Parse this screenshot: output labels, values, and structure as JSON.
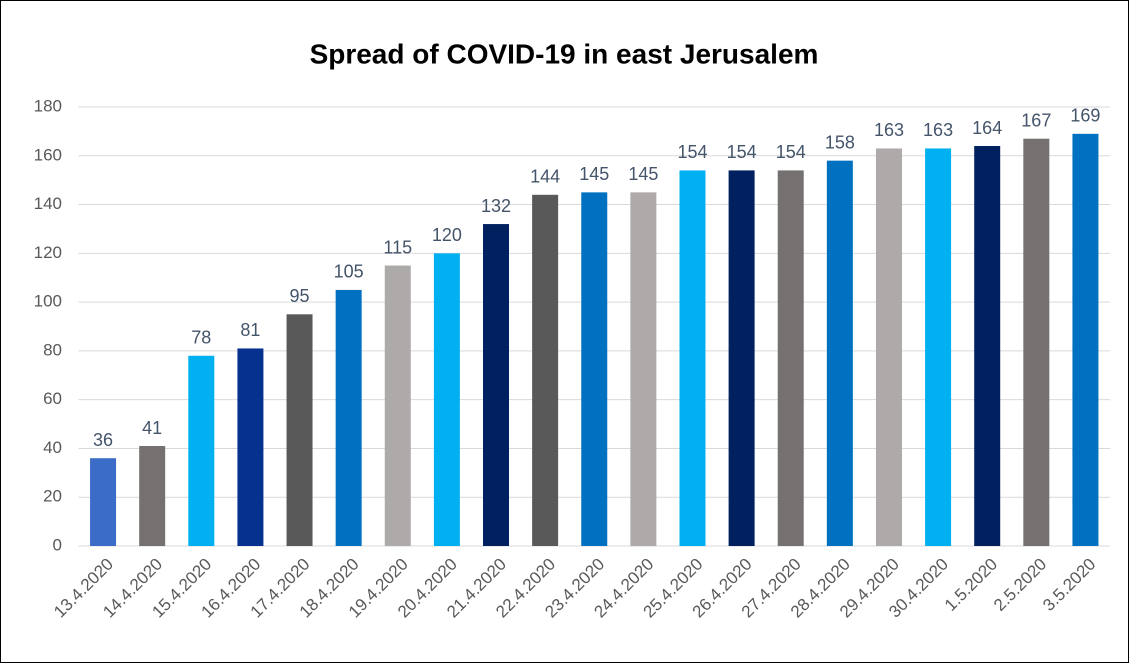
{
  "chart_data": {
    "type": "bar",
    "title": "Spread of COVID-19 in east Jerusalem",
    "categories": [
      "13.4.2020",
      "14.4.2020",
      "15.4.2020",
      "16.4.2020",
      "17.4.2020",
      "18.4.2020",
      "19.4.2020",
      "20.4.2020",
      "21.4.2020",
      "22.4.2020",
      "23.4.2020",
      "24.4.2020",
      "25.4.2020",
      "26.4.2020",
      "27.4.2020",
      "28.4.2020",
      "29.4.2020",
      "30.4.2020",
      "1.5.2020",
      "2.5.2020",
      "3.5.2020"
    ],
    "values": [
      36,
      41,
      78,
      81,
      95,
      105,
      115,
      120,
      132,
      144,
      145,
      145,
      154,
      154,
      154,
      158,
      163,
      163,
      164,
      167,
      169
    ],
    "colors": [
      "#3b6cc7",
      "#767171",
      "#00b0f0",
      "#06318e",
      "#595959",
      "#0070c0",
      "#aeaaaa",
      "#00b0f0",
      "#002060",
      "#595959",
      "#0070c0",
      "#aeaaaa",
      "#00b0f0",
      "#002060",
      "#767171",
      "#0070c0",
      "#aeaaaa",
      "#00b0f0",
      "#002060",
      "#767171",
      "#0070c0"
    ],
    "ylim": [
      0,
      180
    ],
    "yticks": [
      0,
      20,
      40,
      60,
      80,
      100,
      120,
      140,
      160,
      180
    ],
    "grid": true
  }
}
